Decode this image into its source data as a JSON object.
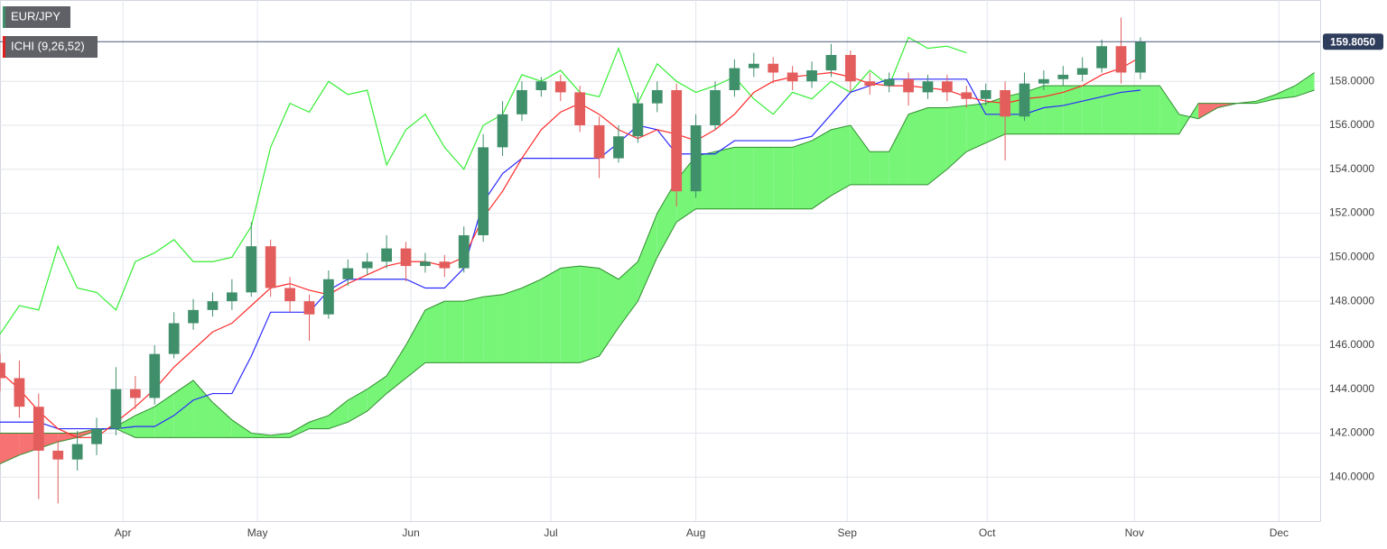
{
  "chart_data": {
    "type": "candlestick",
    "symbol": "EUR/JPY",
    "indicator": "ICHI (9,26,52)",
    "last_price": {
      "value": 159.805,
      "label": "159.8050"
    },
    "xlim": [
      0,
      68.3
    ],
    "xticks": [
      {
        "value": 6.36,
        "label": "Apr"
      },
      {
        "value": 13.32,
        "label": "May"
      },
      {
        "value": 21.26,
        "label": "Jun"
      },
      {
        "value": 28.5,
        "label": "Jul"
      },
      {
        "value": 36,
        "label": "Aug"
      },
      {
        "value": 43.83,
        "label": "Sep"
      },
      {
        "value": 51.07,
        "label": "Oct"
      },
      {
        "value": 58.69,
        "label": "Nov"
      },
      {
        "value": 66.17,
        "label": "Dec"
      }
    ],
    "ylim": [
      138,
      161.7
    ],
    "yticks": [
      {
        "value": 140,
        "label": "140.0000"
      },
      {
        "value": 142,
        "label": "142.0000"
      },
      {
        "value": 144,
        "label": "144.0000"
      },
      {
        "value": 146,
        "label": "146.0000"
      },
      {
        "value": 148,
        "label": "148.0000"
      },
      {
        "value": 150,
        "label": "150.0000"
      },
      {
        "value": 152,
        "label": "152.0000"
      },
      {
        "value": 154,
        "label": "154.0000"
      },
      {
        "value": 156,
        "label": "156.0000"
      },
      {
        "value": 158,
        "label": "158.0000"
      }
    ],
    "grid": true,
    "up_color": "#3f8f6b",
    "down_color": "#e35d5d",
    "open": [
      145.2,
      144.5,
      143.2,
      141.2,
      140.8,
      141.5,
      142.2,
      144,
      143.6,
      145.6,
      147,
      147.6,
      148,
      148.4,
      150.5,
      148.6,
      148,
      147.4,
      149,
      149.5,
      149.8,
      150.4,
      149.6,
      149.8,
      149.5,
      151,
      155,
      156.5,
      157.6,
      158,
      157.5,
      156,
      154.5,
      155.5,
      157,
      157.6,
      153,
      156,
      157.6,
      158.6,
      158.8,
      158.4,
      158,
      158.5,
      159.2,
      158,
      157.8,
      158.1,
      157.5,
      158,
      157.5,
      157.2,
      157.6,
      156.4,
      157.9,
      158.1,
      158.3,
      158.6,
      159.6,
      158.4
    ],
    "high": [
      145.6,
      145.3,
      143.8,
      141.7,
      142.1,
      142.7,
      145,
      144.6,
      146,
      147.5,
      148.1,
      148.4,
      149,
      151.6,
      150.8,
      149.1,
      148.3,
      149.4,
      149.9,
      150.2,
      151,
      150.7,
      150.2,
      150.1,
      151.4,
      155.6,
      157.1,
      158,
      158.2,
      158.3,
      157.8,
      156.4,
      156,
      157.5,
      158,
      157.9,
      156.5,
      158,
      159,
      159.3,
      159.1,
      158.7,
      158.9,
      159.7,
      159.4,
      158.4,
      158.4,
      158.4,
      158.3,
      158.3,
      157.8,
      157.9,
      158,
      158.4,
      158.5,
      158.7,
      159.1,
      159.9,
      160.9,
      160
    ],
    "low": [
      143.9,
      142.7,
      139,
      138.8,
      140.3,
      141,
      141.9,
      143.1,
      143.3,
      145.4,
      146.7,
      147.3,
      147.6,
      148.2,
      148.2,
      147.5,
      146.2,
      147.2,
      148.7,
      149.2,
      149.5,
      148.9,
      149.3,
      149.1,
      149.3,
      150.7,
      154.6,
      156.2,
      157.3,
      157.1,
      155.7,
      153.6,
      154.3,
      155.2,
      156.6,
      152.3,
      152.7,
      155.8,
      157.3,
      158.2,
      157.9,
      157.6,
      157.7,
      158.2,
      157.5,
      157.4,
      157.5,
      156.9,
      157.2,
      157.1,
      156.8,
      156.9,
      154.4,
      156.2,
      157.6,
      157.8,
      158,
      158.4,
      157.9,
      158.1
    ],
    "close": [
      144.5,
      143.2,
      141.2,
      140.8,
      141.5,
      142.2,
      144,
      143.6,
      145.6,
      147,
      147.6,
      148,
      148.4,
      150.5,
      148.6,
      148,
      147.4,
      149,
      149.5,
      149.8,
      150.4,
      149.6,
      149.8,
      149.5,
      151,
      155,
      156.5,
      157.6,
      158,
      157.5,
      156,
      154.5,
      155.5,
      157,
      157.6,
      153,
      156,
      157.6,
      158.6,
      158.8,
      158.4,
      158,
      158.5,
      159.2,
      158,
      157.8,
      158.1,
      157.5,
      158,
      157.5,
      157.2,
      157.6,
      156.4,
      157.9,
      158.1,
      158.3,
      158.6,
      159.6,
      158.4,
      159.8
    ],
    "tenkan": {
      "color": "#ff2a2a",
      "values": [
        144.8,
        144,
        143,
        142.2,
        141.8,
        141.8,
        142.5,
        143.2,
        144,
        145,
        145.8,
        146.6,
        147,
        147.8,
        148.6,
        148.8,
        148.5,
        148.3,
        148.8,
        149.2,
        149.6,
        149.8,
        149.8,
        149.6,
        150,
        151.8,
        153,
        154.5,
        155.8,
        156.6,
        157,
        156.5,
        155.8,
        155.4,
        155.8,
        155.6,
        155.3,
        155.8,
        156.5,
        157.5,
        158,
        158.2,
        158.3,
        158.4,
        158.2,
        157.9,
        157.8,
        157.8,
        157.7,
        157.6,
        157.3,
        157.1,
        157,
        157.2,
        157.3,
        157.5,
        157.8,
        158.3,
        158.6,
        159.1
      ]
    },
    "kijun": {
      "color": "#2a2aff",
      "values": [
        142.5,
        142.5,
        142.5,
        142.2,
        142.2,
        142.2,
        142.2,
        142.3,
        142.3,
        142.8,
        143.5,
        143.8,
        143.8,
        145.5,
        147.5,
        147.5,
        147.5,
        148.5,
        149,
        149,
        149,
        149,
        148.6,
        148.6,
        149.5,
        152.5,
        153.8,
        154.5,
        154.5,
        154.5,
        154.5,
        154.5,
        155.2,
        156,
        155.8,
        154.7,
        154.7,
        154.7,
        155.3,
        155.3,
        155.3,
        155.3,
        155.5,
        156.5,
        157.5,
        157.8,
        158.1,
        158.1,
        158.1,
        158.1,
        158.1,
        156.5,
        156.5,
        156.5,
        156.8,
        156.9,
        157.1,
        157.3,
        157.5,
        157.6
      ]
    },
    "chikou": {
      "color": "#33ee33",
      "values": [
        146.5,
        147.8,
        147.6,
        150.5,
        148.6,
        148.4,
        147.6,
        149.8,
        150.2,
        150.8,
        149.8,
        149.8,
        150,
        151.4,
        155,
        157,
        156.6,
        158,
        157.4,
        157.6,
        154.2,
        155.8,
        156.5,
        155,
        154,
        156,
        156.5,
        158.3,
        158,
        158.5,
        157.5,
        157.3,
        159.5,
        157,
        158.8,
        158,
        157.5,
        157.8,
        158.2,
        157.2,
        156.5,
        157.5,
        157.2,
        158,
        157.5,
        158.5,
        157.8,
        160,
        159.5,
        159.6,
        159.3
      ]
    },
    "span_a": {
      "color": "#2f8f2f",
      "values": [
        140.6,
        141,
        141.3,
        141.6,
        141.8,
        142.1,
        142.3,
        142.8,
        143.2,
        143.8,
        144.4,
        143.4,
        142.6,
        142,
        141.9,
        142,
        142.5,
        142.8,
        143.5,
        144,
        144.6,
        146,
        147.6,
        148,
        148,
        148.2,
        148.3,
        148.6,
        149,
        149.5,
        149.6,
        149.5,
        149,
        149.8,
        152,
        153.5,
        154.6,
        154.8,
        155,
        155,
        155,
        155,
        155.3,
        155.8,
        156,
        154.8,
        154.8,
        156.5,
        156.8,
        156.8,
        156.9,
        157,
        157.3,
        157.5,
        157.8,
        157.8,
        157.8,
        157.8,
        157.8,
        157.8,
        157.8,
        156.5,
        156.3,
        156.8,
        157,
        157.1,
        157.4,
        157.8,
        158.4
      ]
    },
    "span_b": {
      "color": "#2f8f2f",
      "values": [
        142,
        142,
        142,
        142,
        142,
        142.2,
        142.2,
        141.8,
        141.8,
        141.8,
        141.8,
        141.8,
        141.8,
        141.8,
        141.8,
        141.8,
        142.2,
        142.2,
        142.5,
        143,
        143.8,
        144.5,
        145.2,
        145.2,
        145.2,
        145.2,
        145.2,
        145.2,
        145.2,
        145.2,
        145.2,
        145.5,
        146.8,
        148,
        150,
        151.6,
        152.2,
        152.2,
        152.2,
        152.2,
        152.2,
        152.2,
        152.2,
        152.8,
        153.3,
        153.3,
        153.3,
        153.3,
        153.3,
        154,
        154.8,
        155.2,
        155.6,
        155.6,
        155.6,
        155.6,
        155.6,
        155.6,
        155.6,
        155.6,
        155.6,
        155.6,
        157,
        157,
        157,
        157,
        157.2,
        157.3,
        157.6
      ]
    },
    "cloud_up_color": "#77f577",
    "cloud_down_color": "#f77272"
  }
}
